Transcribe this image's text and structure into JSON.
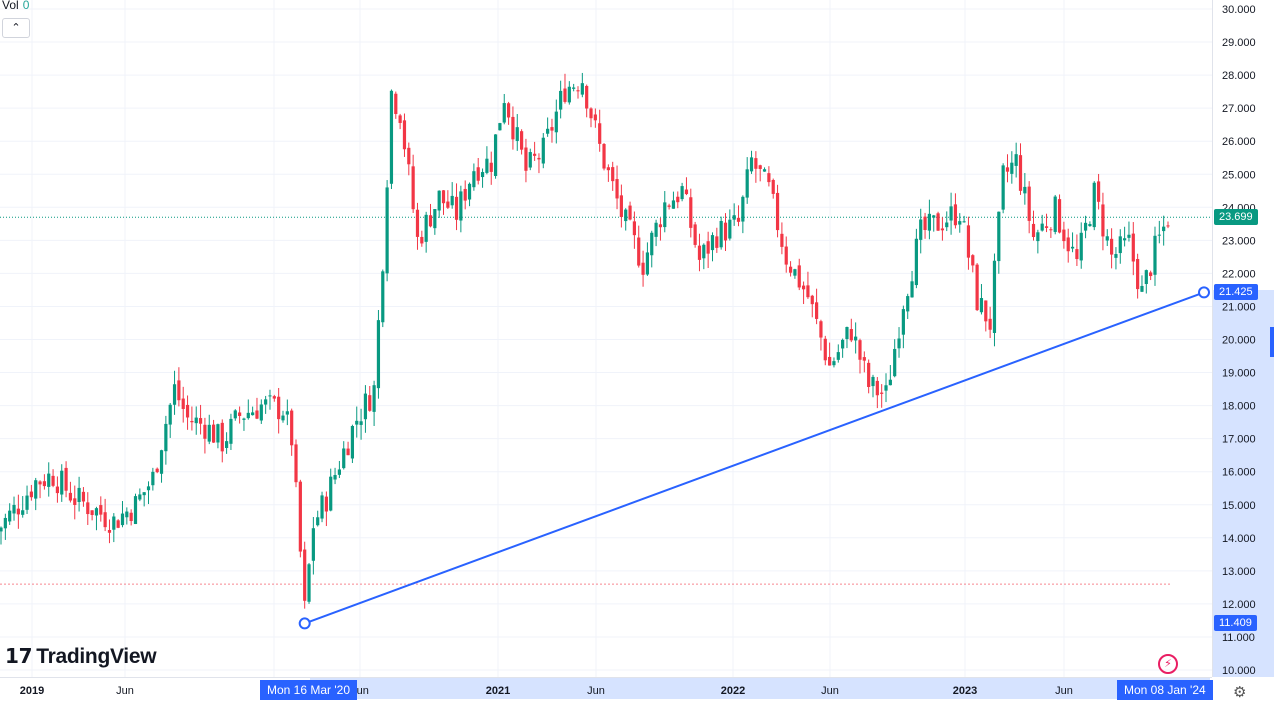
{
  "header": {
    "vol_label": "Vol",
    "vol_value": "0",
    "collapse_glyph": "⌃"
  },
  "logo": {
    "mark": "17",
    "text": "TradingView"
  },
  "price_tags": {
    "last": {
      "text": "23.699",
      "color": "#089981"
    },
    "line_end": {
      "text": "21.425",
      "color": "#2962ff"
    },
    "line_start": {
      "text": "11.409",
      "color": "#2962ff"
    }
  },
  "date_tags": {
    "start": "Mon 16 Mar '20",
    "end": "Mon 08 Jan '24"
  },
  "icons": {
    "settings": "gear-icon",
    "bolt": "lightning-icon"
  },
  "chart_data": {
    "type": "candlestick",
    "y_ticks": [
      "30.000",
      "29.000",
      "28.000",
      "27.000",
      "26.000",
      "25.000",
      "24.000",
      "23.000",
      "22.000",
      "21.000",
      "20.000",
      "19.000",
      "18.000",
      "17.000",
      "16.000",
      "15.000",
      "14.000",
      "13.000",
      "12.000",
      "11.000",
      "10.000"
    ],
    "ylim": [
      10,
      30
    ],
    "x_ticks": [
      "2019",
      "Jun",
      "20",
      "Jun",
      "2021",
      "Jun",
      "2022",
      "Jun",
      "2023",
      "Jun"
    ],
    "last_price": 23.699,
    "reference_low": 12.6,
    "up_color": "#089981",
    "down_color": "#f23645",
    "trendline": {
      "start": {
        "date": "2020-03-16",
        "price": 11.409
      },
      "end": {
        "date": "2024-01-08",
        "price": 21.425
      },
      "color": "#2962ff"
    },
    "weekly_close_path": [
      [
        "2018-11-05",
        14.2
      ],
      [
        "2018-12-10",
        15.0
      ],
      [
        "2019-01-07",
        15.7
      ],
      [
        "2019-02-04",
        15.9
      ],
      [
        "2019-03-11",
        15.2
      ],
      [
        "2019-04-08",
        14.9
      ],
      [
        "2019-05-13",
        14.5
      ],
      [
        "2019-06-17",
        15.0
      ],
      [
        "2019-07-15",
        15.8
      ],
      [
        "2019-08-05",
        17.5
      ],
      [
        "2019-08-19",
        18.5
      ],
      [
        "2019-09-09",
        17.6
      ],
      [
        "2019-10-07",
        17.4
      ],
      [
        "2019-11-04",
        16.9
      ],
      [
        "2019-12-02",
        17.7
      ],
      [
        "2020-01-06",
        18.0
      ],
      [
        "2020-02-10",
        17.9
      ],
      [
        "2020-02-24",
        17.0
      ],
      [
        "2020-03-16",
        11.8
      ],
      [
        "2020-03-30",
        14.4
      ],
      [
        "2020-04-20",
        15.2
      ],
      [
        "2020-05-11",
        16.3
      ],
      [
        "2020-06-08",
        17.6
      ],
      [
        "2020-07-06",
        18.5
      ],
      [
        "2020-07-20",
        22.5
      ],
      [
        "2020-08-03",
        27.5
      ],
      [
        "2020-08-17",
        26.9
      ],
      [
        "2020-09-14",
        23.0
      ],
      [
        "2020-10-19",
        24.3
      ],
      [
        "2020-11-16",
        23.8
      ],
      [
        "2020-12-14",
        25.2
      ],
      [
        "2021-01-11",
        25.4
      ],
      [
        "2021-02-01",
        27.4
      ],
      [
        "2021-03-08",
        25.1
      ],
      [
        "2021-04-05",
        25.7
      ],
      [
        "2021-05-10",
        27.6
      ],
      [
        "2021-06-07",
        27.9
      ],
      [
        "2021-07-05",
        25.8
      ],
      [
        "2021-08-09",
        23.8
      ],
      [
        "2021-09-13",
        22.3
      ],
      [
        "2021-10-18",
        24.1
      ],
      [
        "2021-11-15",
        24.5
      ],
      [
        "2021-12-13",
        22.4
      ],
      [
        "2022-01-10",
        23.2
      ],
      [
        "2022-02-14",
        23.5
      ],
      [
        "2022-03-07",
        25.4
      ],
      [
        "2022-04-04",
        24.5
      ],
      [
        "2022-05-02",
        22.5
      ],
      [
        "2022-06-06",
        21.3
      ],
      [
        "2022-07-11",
        19.2
      ],
      [
        "2022-08-15",
        20.3
      ],
      [
        "2022-09-12",
        18.6
      ],
      [
        "2022-10-10",
        18.3
      ],
      [
        "2022-11-07",
        21.2
      ],
      [
        "2022-12-05",
        23.2
      ],
      [
        "2023-01-09",
        23.6
      ],
      [
        "2023-02-06",
        23.9
      ],
      [
        "2023-03-06",
        21.2
      ],
      [
        "2023-03-27",
        20.5
      ],
      [
        "2023-04-17",
        24.9
      ],
      [
        "2023-05-08",
        25.4
      ],
      [
        "2023-06-05",
        23.1
      ],
      [
        "2023-07-10",
        23.9
      ],
      [
        "2023-08-14",
        22.3
      ],
      [
        "2023-09-11",
        24.4
      ],
      [
        "2023-10-09",
        22.5
      ],
      [
        "2023-11-06",
        22.9
      ],
      [
        "2023-11-27",
        21.4
      ],
      [
        "2023-12-18",
        22.7
      ],
      [
        "2024-01-08",
        23.7
      ]
    ]
  }
}
